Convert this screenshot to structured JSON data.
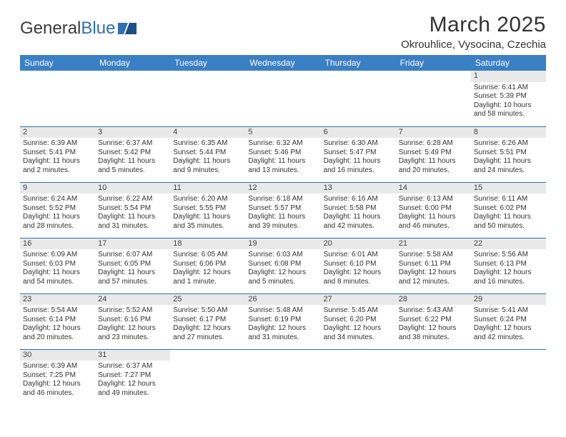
{
  "logo": {
    "text_a": "General",
    "text_b": "Blue"
  },
  "title": "March 2025",
  "location": "Okrouhlice, Vysocina, Czechia",
  "colors": {
    "header_bg": "#3b7fc4",
    "header_text": "#ffffff",
    "divider": "#2e6fb5",
    "daynum_bg": "#e9e9e9",
    "text": "#333333"
  },
  "weekdays": [
    "Sunday",
    "Monday",
    "Tuesday",
    "Wednesday",
    "Thursday",
    "Friday",
    "Saturday"
  ],
  "weeks": [
    [
      null,
      null,
      null,
      null,
      null,
      null,
      {
        "n": "1",
        "sr": "Sunrise: 6:41 AM",
        "ss": "Sunset: 5:39 PM",
        "dl": "Daylight: 10 hours and 58 minutes."
      }
    ],
    [
      {
        "n": "2",
        "sr": "Sunrise: 6:39 AM",
        "ss": "Sunset: 5:41 PM",
        "dl": "Daylight: 11 hours and 2 minutes."
      },
      {
        "n": "3",
        "sr": "Sunrise: 6:37 AM",
        "ss": "Sunset: 5:42 PM",
        "dl": "Daylight: 11 hours and 5 minutes."
      },
      {
        "n": "4",
        "sr": "Sunrise: 6:35 AM",
        "ss": "Sunset: 5:44 PM",
        "dl": "Daylight: 11 hours and 9 minutes."
      },
      {
        "n": "5",
        "sr": "Sunrise: 6:32 AM",
        "ss": "Sunset: 5:46 PM",
        "dl": "Daylight: 11 hours and 13 minutes."
      },
      {
        "n": "6",
        "sr": "Sunrise: 6:30 AM",
        "ss": "Sunset: 5:47 PM",
        "dl": "Daylight: 11 hours and 16 minutes."
      },
      {
        "n": "7",
        "sr": "Sunrise: 6:28 AM",
        "ss": "Sunset: 5:49 PM",
        "dl": "Daylight: 11 hours and 20 minutes."
      },
      {
        "n": "8",
        "sr": "Sunrise: 6:26 AM",
        "ss": "Sunset: 5:51 PM",
        "dl": "Daylight: 11 hours and 24 minutes."
      }
    ],
    [
      {
        "n": "9",
        "sr": "Sunrise: 6:24 AM",
        "ss": "Sunset: 5:52 PM",
        "dl": "Daylight: 11 hours and 28 minutes."
      },
      {
        "n": "10",
        "sr": "Sunrise: 6:22 AM",
        "ss": "Sunset: 5:54 PM",
        "dl": "Daylight: 11 hours and 31 minutes."
      },
      {
        "n": "11",
        "sr": "Sunrise: 6:20 AM",
        "ss": "Sunset: 5:55 PM",
        "dl": "Daylight: 11 hours and 35 minutes."
      },
      {
        "n": "12",
        "sr": "Sunrise: 6:18 AM",
        "ss": "Sunset: 5:57 PM",
        "dl": "Daylight: 11 hours and 39 minutes."
      },
      {
        "n": "13",
        "sr": "Sunrise: 6:16 AM",
        "ss": "Sunset: 5:58 PM",
        "dl": "Daylight: 11 hours and 42 minutes."
      },
      {
        "n": "14",
        "sr": "Sunrise: 6:13 AM",
        "ss": "Sunset: 6:00 PM",
        "dl": "Daylight: 11 hours and 46 minutes."
      },
      {
        "n": "15",
        "sr": "Sunrise: 6:11 AM",
        "ss": "Sunset: 6:02 PM",
        "dl": "Daylight: 11 hours and 50 minutes."
      }
    ],
    [
      {
        "n": "16",
        "sr": "Sunrise: 6:09 AM",
        "ss": "Sunset: 6:03 PM",
        "dl": "Daylight: 11 hours and 54 minutes."
      },
      {
        "n": "17",
        "sr": "Sunrise: 6:07 AM",
        "ss": "Sunset: 6:05 PM",
        "dl": "Daylight: 11 hours and 57 minutes."
      },
      {
        "n": "18",
        "sr": "Sunrise: 6:05 AM",
        "ss": "Sunset: 6:06 PM",
        "dl": "Daylight: 12 hours and 1 minute."
      },
      {
        "n": "19",
        "sr": "Sunrise: 6:03 AM",
        "ss": "Sunset: 6:08 PM",
        "dl": "Daylight: 12 hours and 5 minutes."
      },
      {
        "n": "20",
        "sr": "Sunrise: 6:01 AM",
        "ss": "Sunset: 6:10 PM",
        "dl": "Daylight: 12 hours and 8 minutes."
      },
      {
        "n": "21",
        "sr": "Sunrise: 5:58 AM",
        "ss": "Sunset: 6:11 PM",
        "dl": "Daylight: 12 hours and 12 minutes."
      },
      {
        "n": "22",
        "sr": "Sunrise: 5:56 AM",
        "ss": "Sunset: 6:13 PM",
        "dl": "Daylight: 12 hours and 16 minutes."
      }
    ],
    [
      {
        "n": "23",
        "sr": "Sunrise: 5:54 AM",
        "ss": "Sunset: 6:14 PM",
        "dl": "Daylight: 12 hours and 20 minutes."
      },
      {
        "n": "24",
        "sr": "Sunrise: 5:52 AM",
        "ss": "Sunset: 6:16 PM",
        "dl": "Daylight: 12 hours and 23 minutes."
      },
      {
        "n": "25",
        "sr": "Sunrise: 5:50 AM",
        "ss": "Sunset: 6:17 PM",
        "dl": "Daylight: 12 hours and 27 minutes."
      },
      {
        "n": "26",
        "sr": "Sunrise: 5:48 AM",
        "ss": "Sunset: 6:19 PM",
        "dl": "Daylight: 12 hours and 31 minutes."
      },
      {
        "n": "27",
        "sr": "Sunrise: 5:45 AM",
        "ss": "Sunset: 6:20 PM",
        "dl": "Daylight: 12 hours and 34 minutes."
      },
      {
        "n": "28",
        "sr": "Sunrise: 5:43 AM",
        "ss": "Sunset: 6:22 PM",
        "dl": "Daylight: 12 hours and 38 minutes."
      },
      {
        "n": "29",
        "sr": "Sunrise: 5:41 AM",
        "ss": "Sunset: 6:24 PM",
        "dl": "Daylight: 12 hours and 42 minutes."
      }
    ],
    [
      {
        "n": "30",
        "sr": "Sunrise: 6:39 AM",
        "ss": "Sunset: 7:25 PM",
        "dl": "Daylight: 12 hours and 46 minutes."
      },
      {
        "n": "31",
        "sr": "Sunrise: 6:37 AM",
        "ss": "Sunset: 7:27 PM",
        "dl": "Daylight: 12 hours and 49 minutes."
      },
      null,
      null,
      null,
      null,
      null
    ]
  ]
}
